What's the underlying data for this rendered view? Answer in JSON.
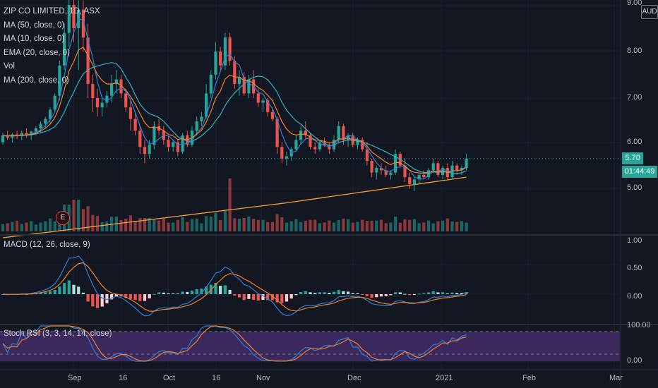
{
  "header": {
    "symbol_title": "ZIP CO LIMITED, 1D, ASX",
    "currency_badge": "AUD"
  },
  "legend": {
    "items": [
      "MA (50, close, 0)",
      "MA (10, close, 0)",
      "EMA (20, close, 0)",
      "Vol",
      "MA (200, close, 0)"
    ]
  },
  "price_axis": {
    "ticks": [
      "9.00",
      "8.00",
      "7.00",
      "6.00",
      "5.00"
    ],
    "last_price": "5.70",
    "countdown": "01:44:49"
  },
  "earnings_marker": {
    "label": "E"
  },
  "macd": {
    "title": "MACD (12, 26, close, 9)",
    "ticks": [
      "1.00",
      "0.50",
      "0.00"
    ]
  },
  "stoch_rsi": {
    "title": "Stoch RSI (3, 3, 14, 14, close)",
    "ticks": [
      "100.00",
      "0.00"
    ]
  },
  "time_axis": {
    "labels": [
      "Sep",
      "16",
      "Oct",
      "16",
      "Nov",
      "Dec",
      "2021",
      "Feb",
      "Mar"
    ]
  },
  "colors": {
    "background": "#131722",
    "up": "#26a69a",
    "down": "#ef5350",
    "ma50": "#2ab5c5",
    "ma10": "#2d7fd9",
    "ema20": "#f07f2f",
    "ma200": "#f39c3c",
    "stoch_band": "#4a2f72",
    "countdown_bg": "#26a69a"
  },
  "chart_data": {
    "type": "candlestick",
    "title": "ZIP CO LIMITED, 1D, ASX",
    "y_range": [
      4.0,
      9.0
    ],
    "x_labels": [
      "Sep",
      "16",
      "Oct",
      "16",
      "Nov",
      "Dec",
      "2021",
      "Feb",
      "Mar"
    ],
    "last_close": 5.7,
    "ohlc_estimated": [
      [
        6.05,
        6.25,
        6.0,
        6.2
      ],
      [
        6.2,
        6.3,
        6.1,
        6.15
      ],
      [
        6.15,
        6.25,
        6.05,
        6.22
      ],
      [
        6.22,
        6.3,
        6.12,
        6.18
      ],
      [
        6.18,
        6.3,
        6.1,
        6.25
      ],
      [
        6.25,
        6.35,
        6.15,
        6.2
      ],
      [
        6.2,
        6.3,
        6.1,
        6.28
      ],
      [
        6.28,
        6.4,
        6.2,
        6.35
      ],
      [
        6.35,
        6.5,
        6.25,
        6.45
      ],
      [
        6.45,
        6.6,
        6.35,
        6.55
      ],
      [
        6.55,
        6.8,
        6.45,
        6.75
      ],
      [
        6.75,
        7.1,
        6.7,
        7.05
      ],
      [
        7.05,
        7.8,
        6.95,
        7.7
      ],
      [
        7.7,
        8.6,
        7.6,
        8.4
      ],
      [
        8.4,
        9.2,
        8.1,
        9.0
      ],
      [
        9.0,
        9.3,
        8.2,
        8.5
      ],
      [
        8.5,
        9.1,
        7.6,
        8.9
      ],
      [
        8.9,
        9.1,
        8.0,
        8.3
      ],
      [
        8.3,
        8.6,
        7.0,
        7.3
      ],
      [
        7.3,
        7.5,
        6.7,
        7.0
      ],
      [
        7.0,
        7.2,
        6.6,
        6.8
      ],
      [
        6.8,
        7.0,
        6.6,
        6.9
      ],
      [
        6.9,
        7.15,
        6.8,
        7.05
      ],
      [
        7.05,
        7.5,
        6.9,
        7.3
      ],
      [
        7.3,
        7.6,
        7.1,
        7.4
      ],
      [
        7.4,
        7.5,
        7.0,
        7.1
      ],
      [
        7.1,
        7.2,
        6.7,
        6.8
      ],
      [
        6.8,
        6.95,
        6.3,
        6.55
      ],
      [
        6.55,
        6.7,
        6.2,
        6.3
      ],
      [
        6.3,
        6.4,
        5.8,
        5.95
      ],
      [
        5.95,
        6.1,
        5.6,
        5.8
      ],
      [
        5.8,
        6.1,
        5.7,
        6.0
      ],
      [
        6.0,
        6.5,
        5.9,
        6.4
      ],
      [
        6.4,
        6.55,
        6.2,
        6.3
      ],
      [
        6.3,
        6.4,
        6.0,
        6.1
      ],
      [
        6.1,
        6.2,
        5.85,
        5.95
      ],
      [
        5.95,
        6.1,
        5.85,
        6.05
      ],
      [
        6.05,
        6.1,
        5.75,
        5.85
      ],
      [
        5.85,
        6.25,
        5.8,
        6.2
      ],
      [
        6.2,
        6.3,
        5.95,
        6.0
      ],
      [
        6.0,
        6.4,
        5.95,
        6.3
      ],
      [
        6.3,
        6.6,
        6.2,
        6.5
      ],
      [
        6.5,
        6.7,
        6.4,
        6.6
      ],
      [
        6.6,
        7.3,
        6.55,
        7.1
      ],
      [
        7.1,
        7.6,
        7.0,
        7.5
      ],
      [
        7.5,
        8.2,
        7.4,
        8.0
      ],
      [
        8.0,
        8.1,
        7.6,
        7.7
      ],
      [
        7.7,
        8.4,
        7.6,
        8.3
      ],
      [
        8.3,
        8.4,
        7.7,
        7.8
      ],
      [
        7.8,
        7.9,
        7.2,
        7.3
      ],
      [
        7.3,
        7.6,
        7.05,
        7.45
      ],
      [
        7.45,
        7.55,
        7.05,
        7.1
      ],
      [
        7.1,
        7.5,
        7.0,
        7.4
      ],
      [
        7.4,
        7.6,
        7.0,
        7.1
      ],
      [
        7.1,
        7.2,
        6.8,
        6.9
      ],
      [
        6.9,
        7.0,
        6.7,
        6.95
      ],
      [
        6.95,
        7.0,
        6.6,
        6.7
      ],
      [
        6.7,
        6.8,
        6.5,
        6.55
      ],
      [
        6.55,
        6.6,
        5.8,
        5.95
      ],
      [
        5.95,
        6.05,
        5.6,
        5.7
      ],
      [
        5.7,
        5.85,
        5.55,
        5.75
      ],
      [
        5.75,
        5.95,
        5.65,
        5.9
      ],
      [
        5.9,
        6.2,
        5.85,
        6.1
      ],
      [
        6.1,
        6.4,
        6.0,
        6.3
      ],
      [
        6.3,
        6.5,
        6.1,
        6.2
      ],
      [
        6.2,
        6.25,
        5.9,
        5.95
      ],
      [
        5.95,
        6.05,
        5.8,
        5.9
      ],
      [
        5.9,
        6.1,
        5.85,
        6.05
      ],
      [
        6.05,
        6.15,
        5.95,
        6.0
      ],
      [
        6.0,
        6.05,
        5.8,
        5.9
      ],
      [
        5.9,
        6.2,
        5.85,
        6.1
      ],
      [
        6.1,
        6.5,
        6.05,
        6.4
      ],
      [
        6.4,
        6.45,
        6.0,
        6.1
      ],
      [
        6.1,
        6.25,
        5.95,
        6.2
      ],
      [
        6.2,
        6.25,
        5.95,
        6.0
      ],
      [
        6.0,
        6.15,
        5.9,
        6.1
      ],
      [
        6.1,
        6.15,
        5.85,
        5.9
      ],
      [
        5.9,
        6.05,
        5.55,
        5.65
      ],
      [
        5.65,
        5.7,
        5.3,
        5.4
      ],
      [
        5.4,
        5.55,
        5.25,
        5.5
      ],
      [
        5.5,
        5.6,
        5.35,
        5.45
      ],
      [
        5.45,
        5.55,
        5.3,
        5.35
      ],
      [
        5.35,
        5.45,
        5.25,
        5.4
      ],
      [
        5.4,
        5.9,
        5.35,
        5.8
      ],
      [
        5.8,
        5.85,
        5.5,
        5.55
      ],
      [
        5.55,
        5.7,
        5.2,
        5.3
      ],
      [
        5.3,
        5.4,
        5.05,
        5.15
      ],
      [
        5.15,
        5.3,
        5.0,
        5.25
      ],
      [
        5.25,
        5.4,
        5.15,
        5.35
      ],
      [
        5.35,
        5.45,
        5.25,
        5.3
      ],
      [
        5.3,
        5.5,
        5.25,
        5.45
      ],
      [
        5.45,
        5.7,
        5.4,
        5.6
      ],
      [
        5.6,
        5.65,
        5.3,
        5.35
      ],
      [
        5.35,
        5.55,
        5.25,
        5.5
      ],
      [
        5.5,
        5.6,
        5.25,
        5.3
      ],
      [
        5.3,
        5.65,
        5.25,
        5.55
      ],
      [
        5.55,
        5.6,
        5.35,
        5.45
      ],
      [
        5.45,
        5.55,
        5.35,
        5.5
      ],
      [
        5.5,
        5.8,
        5.45,
        5.7
      ]
    ]
  }
}
